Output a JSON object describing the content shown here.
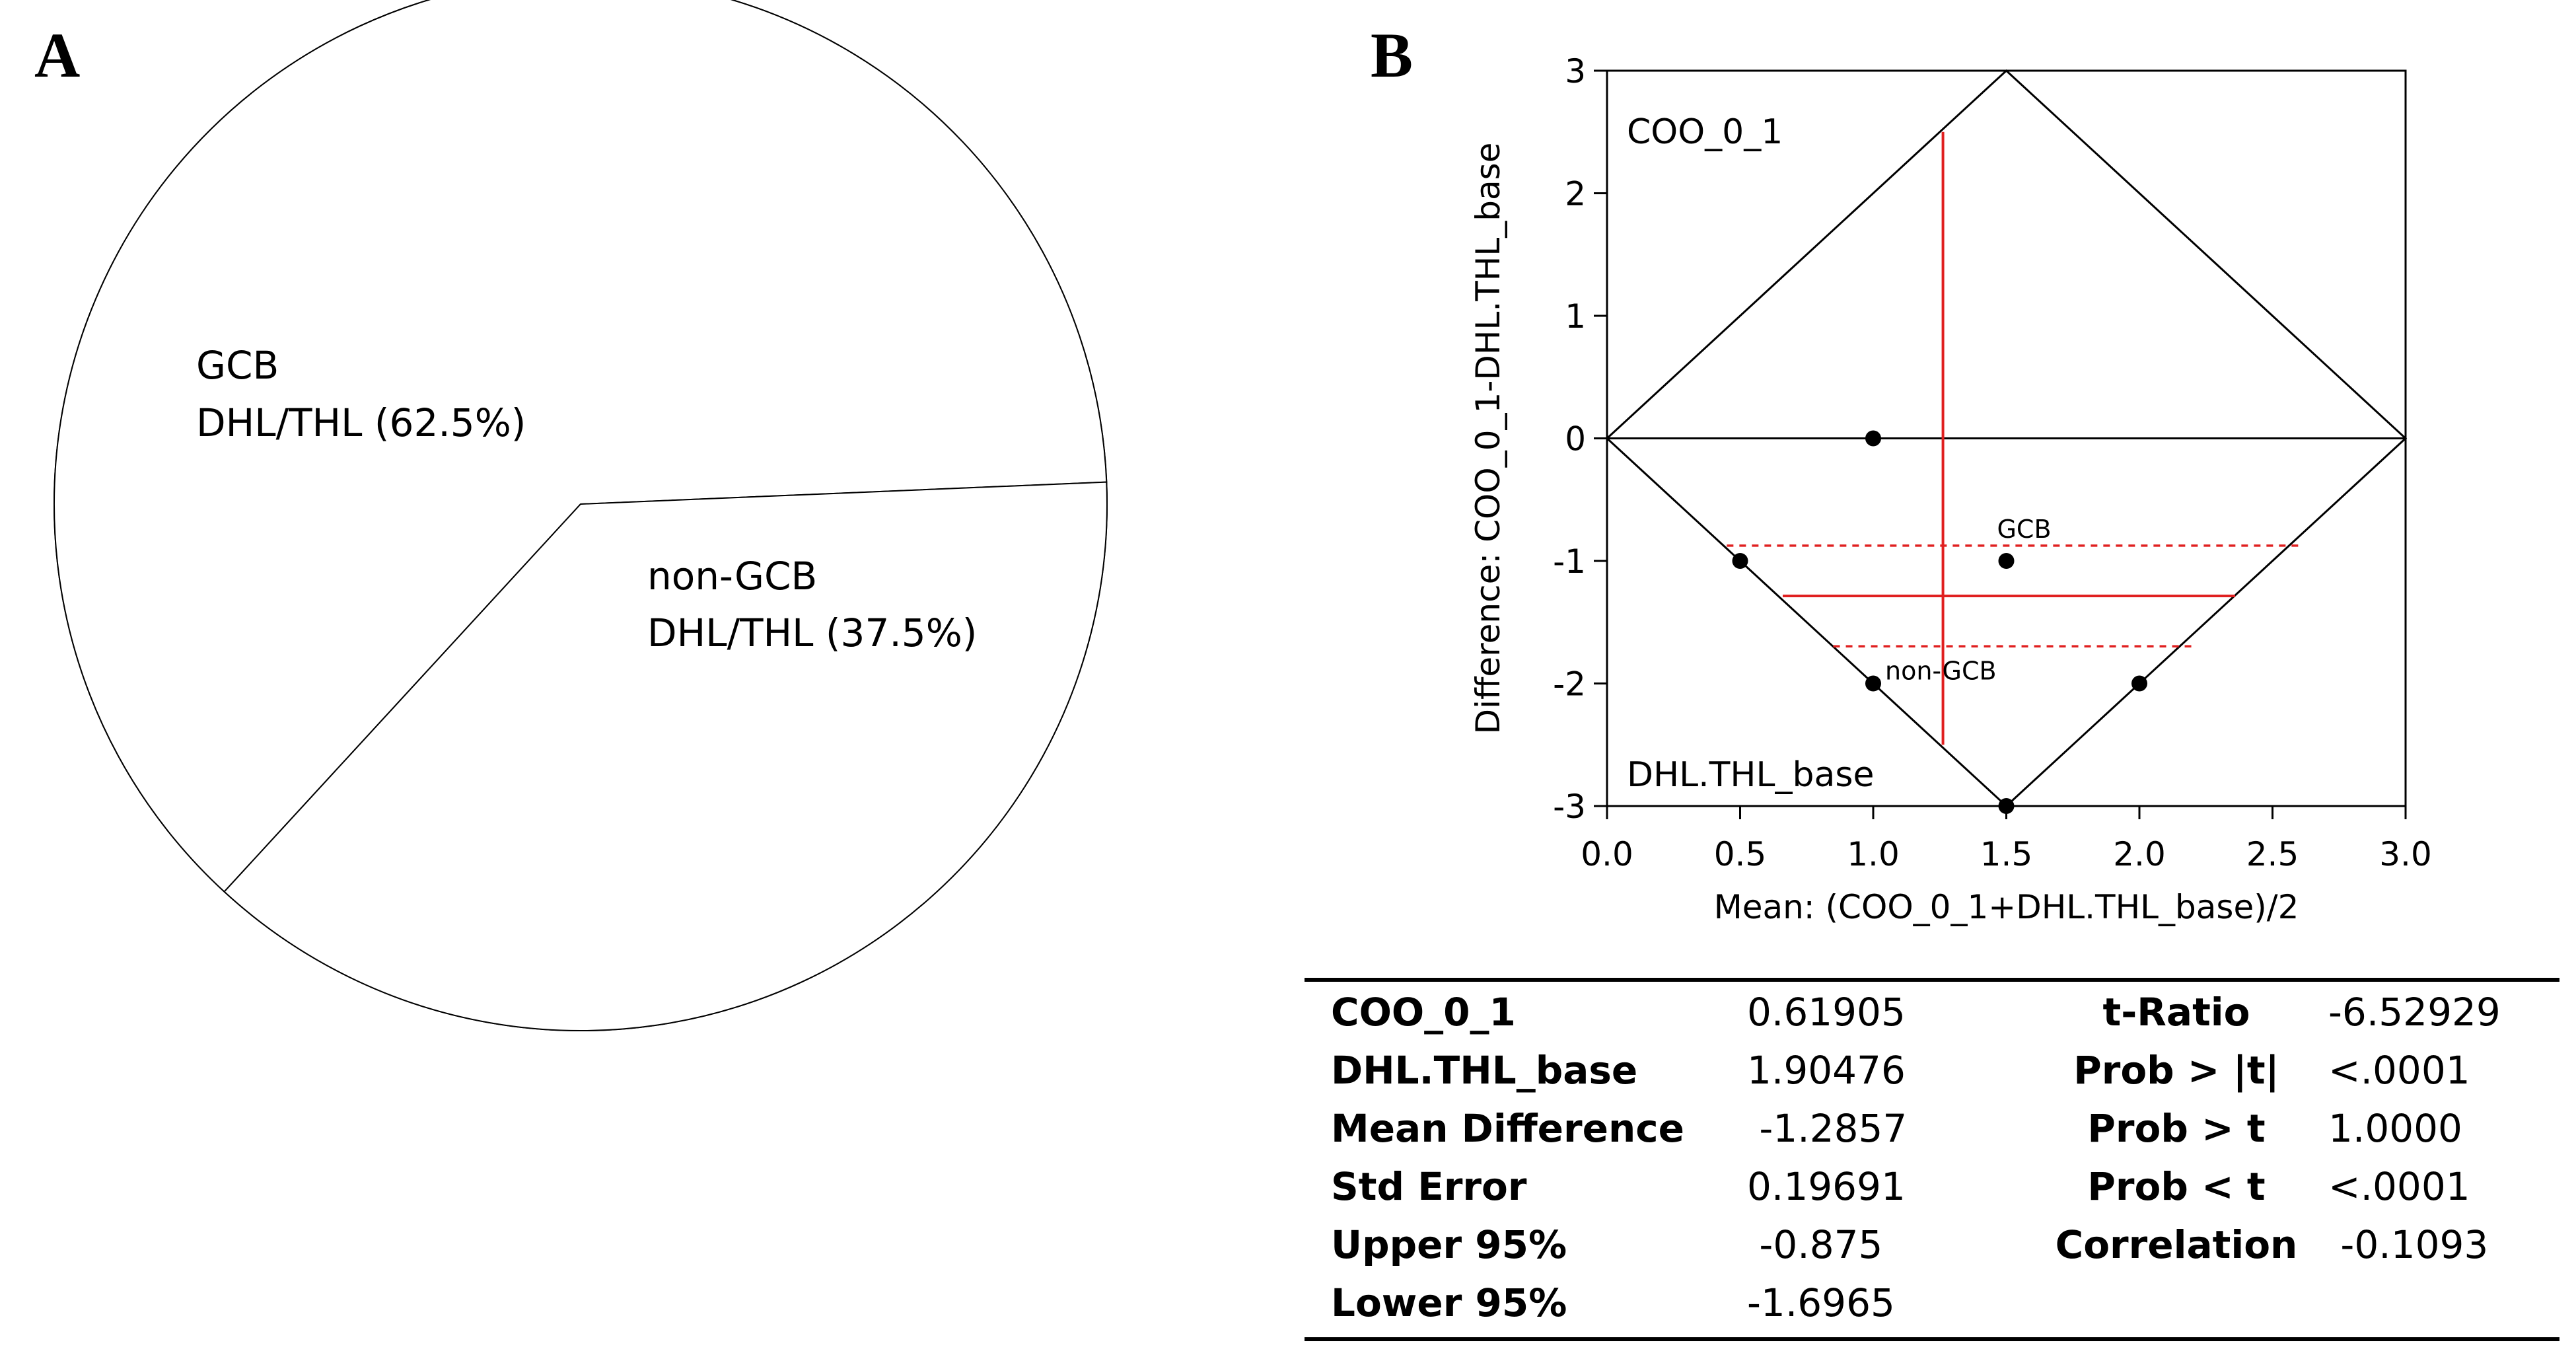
{
  "panel_a": {
    "letter": "A",
    "chart_data": {
      "type": "pie",
      "slices": [
        {
          "name": "GCB",
          "label_line1": "GCB",
          "label_line2": "DHL/THL (62.5%)",
          "value": 62.5,
          "color": "#ffffff"
        },
        {
          "name": "non-GCB",
          "label_line1": "non-GCB",
          "label_line2": "DHL/THL (37.5%)",
          "value": 37.5,
          "color": "#ffffff"
        }
      ]
    }
  },
  "panel_b": {
    "letter": "B",
    "chart_data": {
      "type": "scatter",
      "xlabel": "Mean: (COO_0_1+DHL.THL_base)/2",
      "ylabel": "Difference: COO_0_1-DHL.THL_base",
      "xlim": [
        0,
        3
      ],
      "ylim": [
        -3,
        3
      ],
      "xticks": [
        "0.0",
        "0.5",
        "1.0",
        "1.5",
        "2.0",
        "2.5",
        "3.0"
      ],
      "xtick_values": [
        0,
        0.5,
        1.0,
        1.5,
        2.0,
        2.5,
        3.0
      ],
      "yticks": [
        "3",
        "2",
        "1",
        "0",
        "-1",
        "-2",
        "-3"
      ],
      "ytick_values": [
        3,
        2,
        1,
        0,
        -1,
        -2,
        -3
      ],
      "corner_label_top": "COO_0_1",
      "corner_label_bottom": "DHL.THL_base",
      "points": [
        {
          "x": 1.0,
          "y": 0
        },
        {
          "x": 0.5,
          "y": -1
        },
        {
          "x": 1.5,
          "y": -1
        },
        {
          "x": 1.0,
          "y": -2
        },
        {
          "x": 2.0,
          "y": -2
        },
        {
          "x": 1.5,
          "y": -3
        }
      ],
      "annotations": [
        {
          "text": "GCB",
          "x": 1.5,
          "y": -1
        },
        {
          "text": "non-GCB",
          "x": 1.0,
          "y": -2
        }
      ],
      "mean_difference": -1.2857,
      "upper_95": -0.875,
      "lower_95": -1.6965,
      "mean_line_x": 1.262,
      "vertical_line_range": [
        -2.5,
        2.5
      ],
      "mean_line_xrange": [
        0.66,
        2.36
      ],
      "ci_upper_xrange": [
        0.45,
        2.6
      ],
      "ci_lower_xrange": [
        0.85,
        2.2
      ],
      "line_color": "#e02020",
      "axis_color": "#000000"
    },
    "stats_table": {
      "rows": [
        {
          "label": "COO_0_1",
          "value": "0.61905",
          "label2": "t-Ratio",
          "value2": "-6.52929"
        },
        {
          "label": "DHL.THL_base",
          "value": "1.90476",
          "label2": "Prob > |t|",
          "value2": "<.0001"
        },
        {
          "label": "Mean Difference",
          "value": " -1.2857",
          "label2": "Prob > t",
          "value2": "1.0000"
        },
        {
          "label": "Std Error",
          "value": "0.19691",
          "label2": "Prob < t",
          "value2": "<.0001"
        },
        {
          "label": "Upper 95%",
          "value": " -0.875",
          "label2": "Correlation",
          "value2": " -0.1093"
        },
        {
          "label": "Lower 95%",
          "value": "-1.6965",
          "label2": "",
          "value2": ""
        }
      ]
    }
  }
}
